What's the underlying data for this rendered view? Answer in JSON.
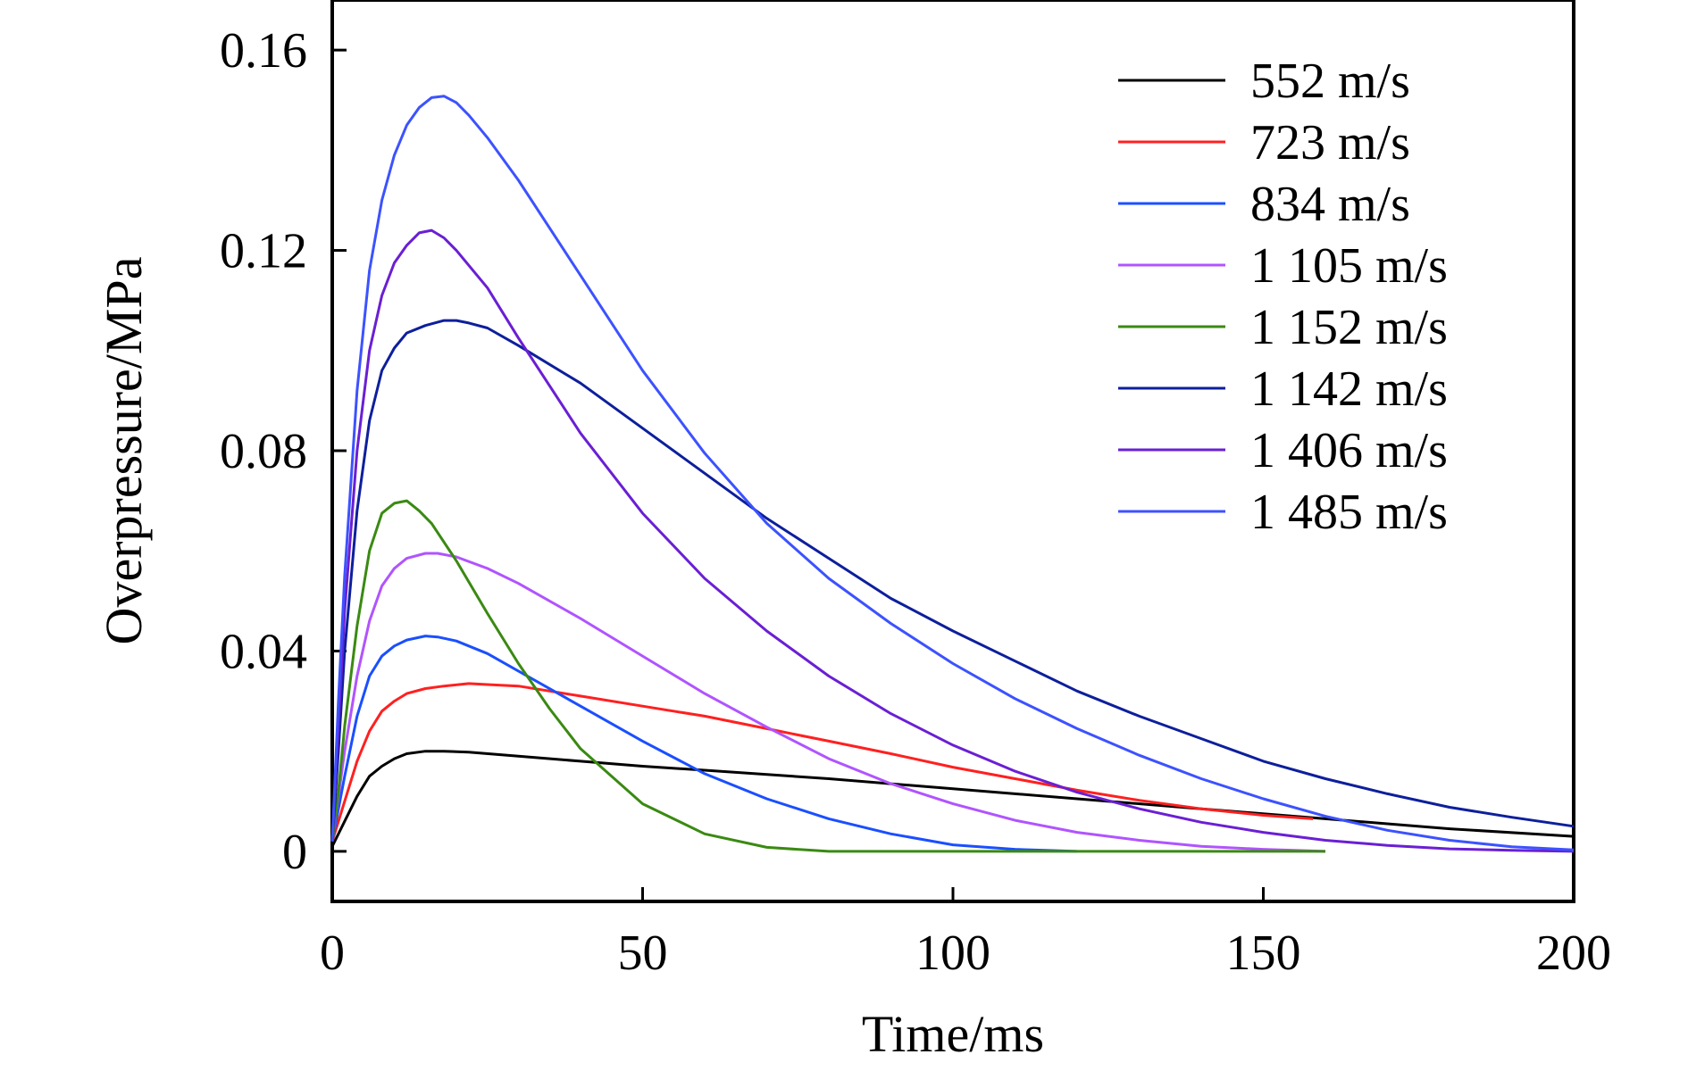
{
  "chart_data": {
    "type": "line",
    "xlabel": "Time/ms",
    "ylabel": "Overpressure/MPa",
    "xlim": [
      0,
      200
    ],
    "ylim": [
      -0.01,
      0.17
    ],
    "xticks": [
      "0",
      "50",
      "100",
      "150",
      "200"
    ],
    "yticks": [
      "0",
      "0.04",
      "0.08",
      "0.12",
      "0.16"
    ],
    "grid": false,
    "legend_position": "top-right",
    "series": [
      {
        "name": "552 m/s",
        "color": "#000000",
        "x": [
          0,
          2,
          4,
          6,
          8,
          10,
          12,
          15,
          18,
          22,
          30,
          40,
          50,
          60,
          80,
          100,
          120,
          140,
          160,
          180,
          200
        ],
        "y": [
          0.001,
          0.006,
          0.011,
          0.015,
          0.017,
          0.0185,
          0.0195,
          0.02,
          0.02,
          0.0198,
          0.019,
          0.018,
          0.017,
          0.0162,
          0.0145,
          0.0125,
          0.0105,
          0.0085,
          0.0065,
          0.0045,
          0.003
        ]
      },
      {
        "name": "723 m/s",
        "color": "#ff2020",
        "x": [
          0,
          2,
          4,
          6,
          8,
          10,
          12,
          15,
          18,
          22,
          25,
          30,
          40,
          50,
          60,
          70,
          80,
          90,
          100,
          110,
          120,
          130,
          140,
          150,
          158
        ],
        "y": [
          0.002,
          0.01,
          0.018,
          0.024,
          0.028,
          0.03,
          0.0315,
          0.0325,
          0.033,
          0.0335,
          0.0333,
          0.033,
          0.031,
          0.029,
          0.027,
          0.0245,
          0.022,
          0.0195,
          0.0168,
          0.0145,
          0.0122,
          0.0102,
          0.0085,
          0.0072,
          0.0065
        ]
      },
      {
        "name": "834 m/s",
        "color": "#1a4fff",
        "x": [
          0,
          2,
          4,
          6,
          8,
          10,
          12,
          15,
          17,
          20,
          25,
          30,
          40,
          50,
          60,
          70,
          80,
          90,
          100,
          110,
          120
        ],
        "y": [
          0.002,
          0.015,
          0.027,
          0.035,
          0.039,
          0.041,
          0.0422,
          0.043,
          0.0428,
          0.042,
          0.0395,
          0.036,
          0.029,
          0.022,
          0.0155,
          0.0105,
          0.0065,
          0.0035,
          0.0013,
          0.0004,
          0
        ]
      },
      {
        "name": "1 105 m/s",
        "color": "#b054ff",
        "x": [
          0,
          2,
          4,
          6,
          8,
          10,
          12,
          15,
          17,
          20,
          25,
          30,
          40,
          50,
          60,
          70,
          80,
          90,
          100,
          110,
          120,
          130,
          140,
          150,
          160
        ],
        "y": [
          0.002,
          0.02,
          0.035,
          0.046,
          0.053,
          0.0565,
          0.0585,
          0.0595,
          0.0595,
          0.0588,
          0.0565,
          0.0535,
          0.0465,
          0.039,
          0.0315,
          0.0248,
          0.0185,
          0.0135,
          0.0095,
          0.0062,
          0.0038,
          0.0022,
          0.001,
          0.0004,
          0
        ]
      },
      {
        "name": "1 152 m/s",
        "color": "#3a8a12",
        "x": [
          0,
          1,
          2,
          4,
          6,
          8,
          10,
          12,
          14,
          16,
          20,
          25,
          30,
          35,
          40,
          50,
          60,
          70,
          80,
          90,
          100,
          120,
          140,
          160
        ],
        "y": [
          0.002,
          0.012,
          0.025,
          0.045,
          0.06,
          0.0675,
          0.0695,
          0.07,
          0.068,
          0.0655,
          0.058,
          0.0475,
          0.0375,
          0.0285,
          0.0205,
          0.0095,
          0.0035,
          0.0008,
          0,
          0,
          0,
          0,
          0,
          0
        ]
      },
      {
        "name": "1 142 m/s",
        "color": "#0d1f9c",
        "x": [
          0,
          1,
          2,
          4,
          6,
          8,
          10,
          12,
          15,
          18,
          20,
          22,
          25,
          30,
          40,
          50,
          60,
          70,
          80,
          90,
          100,
          110,
          120,
          130,
          140,
          150,
          160,
          170,
          180,
          190,
          200
        ],
        "y": [
          0.002,
          0.02,
          0.04,
          0.068,
          0.086,
          0.096,
          0.1005,
          0.1035,
          0.105,
          0.106,
          0.106,
          0.1055,
          0.1045,
          0.101,
          0.0935,
          0.0845,
          0.0755,
          0.0665,
          0.0585,
          0.0505,
          0.044,
          0.038,
          0.032,
          0.027,
          0.0225,
          0.018,
          0.0145,
          0.0115,
          0.0088,
          0.0068,
          0.005
        ]
      },
      {
        "name": "1 406 m/s",
        "color": "#6a1fd4",
        "x": [
          0,
          1,
          2,
          4,
          6,
          8,
          10,
          12,
          14,
          16,
          18,
          20,
          25,
          30,
          40,
          50,
          60,
          70,
          80,
          90,
          100,
          110,
          120,
          130,
          140,
          150,
          160,
          170,
          180,
          190,
          200
        ],
        "y": [
          0.002,
          0.025,
          0.048,
          0.08,
          0.1,
          0.111,
          0.1175,
          0.121,
          0.1235,
          0.124,
          0.1225,
          0.12,
          0.1125,
          0.1025,
          0.0835,
          0.0675,
          0.0545,
          0.044,
          0.035,
          0.0275,
          0.0212,
          0.016,
          0.0118,
          0.0085,
          0.0058,
          0.0038,
          0.0022,
          0.0012,
          0.0005,
          0.0002,
          0
        ]
      },
      {
        "name": "1 485 m/s",
        "color": "#3c52ff",
        "x": [
          0,
          1,
          2,
          4,
          6,
          8,
          10,
          12,
          14,
          16,
          18,
          20,
          22,
          25,
          30,
          40,
          50,
          60,
          70,
          80,
          90,
          100,
          110,
          120,
          130,
          140,
          150,
          160,
          170,
          180,
          190,
          200
        ],
        "y": [
          0.002,
          0.03,
          0.055,
          0.092,
          0.116,
          0.13,
          0.139,
          0.145,
          0.1485,
          0.1505,
          0.1508,
          0.1495,
          0.147,
          0.1425,
          0.134,
          0.115,
          0.096,
          0.0795,
          0.0655,
          0.0545,
          0.0455,
          0.0375,
          0.0305,
          0.0245,
          0.0192,
          0.0145,
          0.0105,
          0.007,
          0.0042,
          0.0022,
          0.0009,
          0.0003
        ]
      }
    ]
  }
}
